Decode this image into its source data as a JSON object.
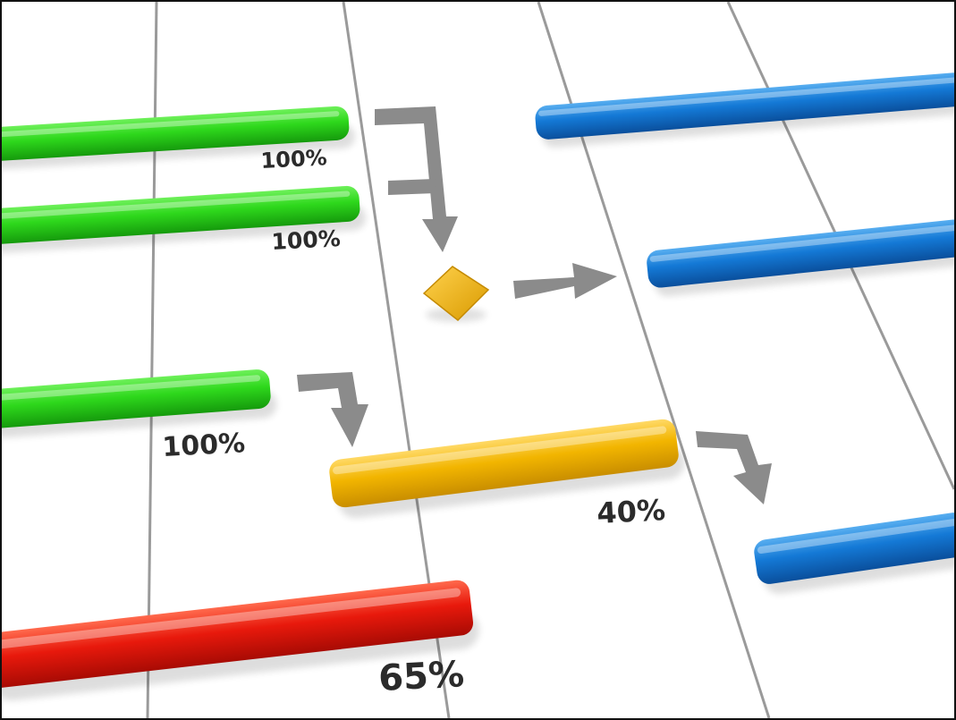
{
  "colors": {
    "complete": "#2ecc1f",
    "in_progress": "#f0b400",
    "critical": "#e8190c",
    "planned": "#1479d6",
    "connector": "#8a8a8a",
    "gridline": "#9a9a9a",
    "label": "#2b2b2b"
  },
  "tasks": [
    {
      "id": "task-1",
      "status": "complete",
      "progress": 1.0,
      "progress_label": "100%"
    },
    {
      "id": "task-2",
      "status": "complete",
      "progress": 1.0,
      "progress_label": "100%"
    },
    {
      "id": "task-3",
      "status": "complete",
      "progress": 1.0,
      "progress_label": "100%"
    },
    {
      "id": "task-4",
      "status": "in_progress",
      "progress": 0.4,
      "progress_label": "40%"
    },
    {
      "id": "task-5",
      "status": "critical",
      "progress": 0.65,
      "progress_label": "65%"
    },
    {
      "id": "task-6",
      "status": "planned"
    },
    {
      "id": "task-7",
      "status": "planned"
    },
    {
      "id": "task-8",
      "status": "planned"
    }
  ],
  "milestone": {
    "id": "milestone-1",
    "shape": "diamond",
    "color": "#f0b400"
  },
  "dependencies": [
    {
      "from": "task-1",
      "to": "milestone-1"
    },
    {
      "from": "task-2",
      "to": "milestone-1"
    },
    {
      "from": "milestone-1",
      "to": "task-7"
    },
    {
      "from": "task-3",
      "to": "task-4"
    },
    {
      "from": "task-4",
      "to": "task-8"
    }
  ]
}
